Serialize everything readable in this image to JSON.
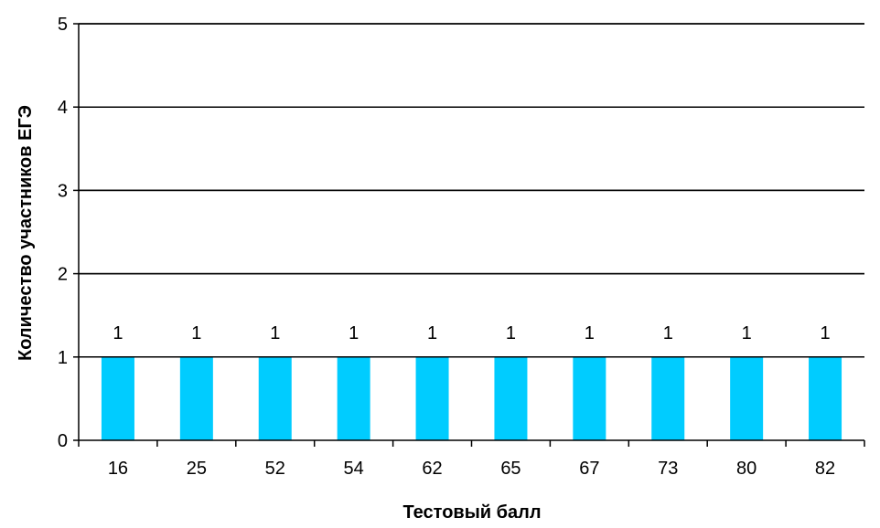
{
  "chart_data": {
    "type": "bar",
    "title": "",
    "xlabel": "Тестовый балл",
    "ylabel": "Количество участников ЕГЭ",
    "categories": [
      "16",
      "25",
      "52",
      "54",
      "62",
      "65",
      "67",
      "73",
      "80",
      "82"
    ],
    "values": [
      1,
      1,
      1,
      1,
      1,
      1,
      1,
      1,
      1,
      1
    ],
    "ylim": [
      0,
      5
    ],
    "yticks": [
      0,
      1,
      2,
      3,
      4,
      5
    ],
    "grid": "horizontal",
    "legend": "none",
    "data_labels": true,
    "colors": {
      "bar": "#00CCFF",
      "grid": "#000000",
      "axis": "#000000"
    }
  }
}
